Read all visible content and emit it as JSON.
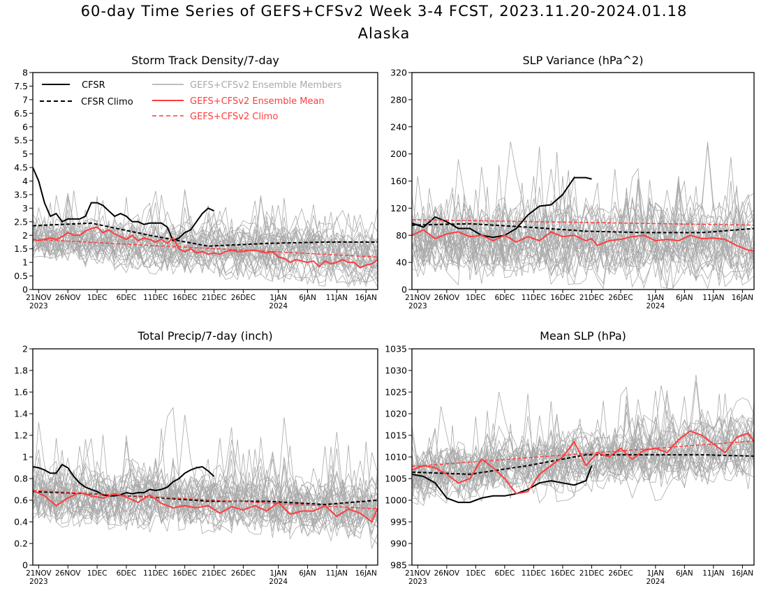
{
  "header": {
    "title": "60-day Time Series of GEFS+CFSv2 Week 3-4 FCST, 2023.11.20-2024.01.18",
    "subtitle": "Alaska"
  },
  "x_axis": {
    "ticks": [
      {
        "day": 1,
        "label": "21NOV",
        "sub": "2023"
      },
      {
        "day": 6,
        "label": "26NOV",
        "sub": ""
      },
      {
        "day": 11,
        "label": "1DEC",
        "sub": ""
      },
      {
        "day": 16,
        "label": "6DEC",
        "sub": ""
      },
      {
        "day": 21,
        "label": "11DEC",
        "sub": ""
      },
      {
        "day": 26,
        "label": "16DEC",
        "sub": ""
      },
      {
        "day": 31,
        "label": "21DEC",
        "sub": ""
      },
      {
        "day": 36,
        "label": "26DEC",
        "sub": ""
      },
      {
        "day": 42,
        "label": "1JAN",
        "sub": "2024"
      },
      {
        "day": 47,
        "label": "6JAN",
        "sub": ""
      },
      {
        "day": 52,
        "label": "11JAN",
        "sub": ""
      },
      {
        "day": 57,
        "label": "16JAN",
        "sub": ""
      }
    ]
  },
  "legend": {
    "cfsr": "CFSR",
    "cfsr_climo": "CFSR Climo",
    "members": "GEFS+CFSv2 Ensemble Members",
    "ens_mean": "GEFS+CFSv2 Ensemble Mean",
    "gefs_climo": "GEFS+CFSv2 Climo"
  },
  "colors": {
    "cfsr": "#000000",
    "members": "#a9a9a9",
    "ens_mean": "#ff3c3c",
    "climo_red": "#ff3c3c"
  },
  "chart_data": [
    {
      "type": "line",
      "title": "Storm Track Density/7-day",
      "ylim": [
        0,
        8
      ],
      "yticks": [
        "0",
        "0.5",
        "1",
        "1.5",
        "2",
        "2.5",
        "3",
        "3.5",
        "4",
        "4.5",
        "5",
        "5.5",
        "6",
        "6.5",
        "7",
        "7.5",
        "8"
      ],
      "member_band": {
        "center": [
          1.85,
          1.2
        ],
        "spread": 0.75
      },
      "series": [
        {
          "role": "cfsr",
          "x": [
            0,
            1,
            2,
            3,
            4,
            5,
            6,
            7,
            8,
            9,
            10,
            11,
            12,
            13,
            14,
            15,
            16,
            17,
            18,
            19,
            20,
            21,
            22,
            23,
            24,
            25,
            26,
            27,
            28,
            29,
            30,
            31
          ],
          "values": [
            4.5,
            4.0,
            3.2,
            2.7,
            2.8,
            2.5,
            2.6,
            2.6,
            2.6,
            2.7,
            3.2,
            3.2,
            3.1,
            2.9,
            2.7,
            2.8,
            2.7,
            2.5,
            2.5,
            2.4,
            2.45,
            2.45,
            2.45,
            2.3,
            1.8,
            1.9,
            2.1,
            2.2,
            2.5,
            2.8,
            3.0,
            2.9
          ]
        },
        {
          "role": "cfsr_climo",
          "x": [
            0,
            10,
            20,
            30,
            40,
            50,
            59
          ],
          "values": [
            2.35,
            2.45,
            2.0,
            1.6,
            1.7,
            1.75,
            1.75
          ]
        },
        {
          "role": "ens_mean",
          "x": [
            0,
            1,
            2,
            3,
            4,
            5,
            6,
            7,
            8,
            9,
            10,
            11,
            12,
            13,
            14,
            15,
            16,
            17,
            18,
            19,
            20,
            21,
            22,
            23,
            24,
            25,
            26,
            27,
            28,
            29,
            30,
            31,
            32,
            33,
            34,
            35,
            36,
            37,
            38,
            39,
            40,
            41,
            42,
            43,
            44,
            45,
            46,
            47,
            48,
            49,
            50,
            51,
            52,
            53,
            54,
            55,
            56,
            57,
            58,
            59
          ],
          "values": [
            1.85,
            1.8,
            1.85,
            1.9,
            1.85,
            1.95,
            2.1,
            2.0,
            2.0,
            2.15,
            2.25,
            2.3,
            2.1,
            2.2,
            2.05,
            1.95,
            1.85,
            2.0,
            1.8,
            1.9,
            1.85,
            1.75,
            1.85,
            1.7,
            1.9,
            1.5,
            1.4,
            1.5,
            1.35,
            1.4,
            1.3,
            1.35,
            1.3,
            1.4,
            1.45,
            1.4,
            1.4,
            1.45,
            1.45,
            1.4,
            1.35,
            1.4,
            1.2,
            1.15,
            1.0,
            1.1,
            1.05,
            1.0,
            1.05,
            0.85,
            1.05,
            0.95,
            1.0,
            1.1,
            1.0,
            1.0,
            0.8,
            0.9,
            0.95,
            1.1
          ]
        },
        {
          "role": "gefs_climo",
          "x": [
            0,
            59
          ],
          "values": [
            1.85,
            1.2
          ]
        }
      ]
    },
    {
      "type": "line",
      "title": "SLP Variance (hPa^2)",
      "ylim": [
        0,
        320
      ],
      "yticks": [
        "0",
        "40",
        "80",
        "120",
        "160",
        "200",
        "240",
        "280",
        "320"
      ],
      "member_band": {
        "center": [
          72,
          72
        ],
        "spread": 45
      },
      "series": [
        {
          "role": "cfsr",
          "x": [
            0,
            2,
            4,
            6,
            8,
            10,
            12,
            14,
            16,
            18,
            20,
            22,
            24,
            26,
            28,
            30,
            31
          ],
          "values": [
            98,
            92,
            107,
            100,
            90,
            90,
            80,
            77,
            80,
            90,
            110,
            123,
            125,
            140,
            165,
            165,
            163
          ]
        },
        {
          "role": "cfsr_climo",
          "x": [
            0,
            10,
            20,
            30,
            40,
            50,
            59
          ],
          "values": [
            95,
            97,
            92,
            86,
            84,
            84,
            90
          ]
        },
        {
          "role": "ens_mean",
          "x": [
            0,
            2,
            4,
            6,
            8,
            10,
            12,
            14,
            16,
            18,
            20,
            22,
            24,
            26,
            28,
            30,
            31,
            32,
            34,
            36,
            38,
            40,
            42,
            44,
            46,
            48,
            50,
            52,
            54,
            56,
            58,
            59
          ],
          "values": [
            80,
            88,
            75,
            82,
            85,
            78,
            80,
            72,
            80,
            70,
            78,
            72,
            85,
            78,
            80,
            72,
            75,
            65,
            72,
            74,
            78,
            80,
            72,
            74,
            72,
            80,
            75,
            76,
            74,
            65,
            58,
            57
          ]
        },
        {
          "role": "gefs_climo",
          "x": [
            0,
            59
          ],
          "values": [
            103,
            95
          ]
        }
      ]
    },
    {
      "type": "line",
      "title": "Total Precip/7-day (inch)",
      "ylim": [
        0,
        2
      ],
      "yticks": [
        "0",
        "0.2",
        "0.4",
        "0.6",
        "0.8",
        "1",
        "1.2",
        "1.4",
        "1.6",
        "1.8",
        "2"
      ],
      "member_band": {
        "center": [
          0.65,
          0.55
        ],
        "spread": 0.25
      },
      "series": [
        {
          "role": "cfsr",
          "x": [
            0,
            1,
            2,
            3,
            4,
            5,
            6,
            7,
            8,
            9,
            10,
            11,
            12,
            13,
            14,
            15,
            16,
            17,
            18,
            19,
            20,
            21,
            22,
            23,
            24,
            25,
            26,
            27,
            28,
            29,
            30,
            31
          ],
          "values": [
            0.91,
            0.9,
            0.88,
            0.85,
            0.85,
            0.93,
            0.9,
            0.82,
            0.76,
            0.72,
            0.7,
            0.68,
            0.65,
            0.64,
            0.64,
            0.65,
            0.67,
            0.66,
            0.67,
            0.67,
            0.7,
            0.69,
            0.7,
            0.72,
            0.77,
            0.8,
            0.85,
            0.88,
            0.9,
            0.91,
            0.87,
            0.82
          ]
        },
        {
          "role": "cfsr_climo",
          "x": [
            0,
            10,
            20,
            30,
            40,
            50,
            59
          ],
          "values": [
            0.68,
            0.66,
            0.63,
            0.59,
            0.59,
            0.56,
            0.6
          ]
        },
        {
          "role": "ens_mean",
          "x": [
            0,
            2,
            4,
            6,
            8,
            10,
            12,
            14,
            16,
            18,
            20,
            22,
            24,
            26,
            28,
            30,
            32,
            34,
            36,
            38,
            40,
            42,
            44,
            46,
            48,
            50,
            52,
            54,
            56,
            58,
            59
          ],
          "values": [
            0.69,
            0.64,
            0.55,
            0.62,
            0.67,
            0.64,
            0.62,
            0.66,
            0.63,
            0.58,
            0.65,
            0.57,
            0.53,
            0.55,
            0.53,
            0.55,
            0.48,
            0.54,
            0.51,
            0.55,
            0.5,
            0.58,
            0.47,
            0.5,
            0.5,
            0.55,
            0.45,
            0.52,
            0.48,
            0.4,
            0.53
          ]
        },
        {
          "role": "gefs_climo",
          "x": [
            0,
            59
          ],
          "values": [
            0.69,
            0.52
          ]
        }
      ]
    },
    {
      "type": "line",
      "title": "Mean SLP (hPa)",
      "ylim": [
        985,
        1035
      ],
      "yticks": [
        "985",
        "990",
        "995",
        "1000",
        "1005",
        "1010",
        "1015",
        "1020",
        "1025",
        "1030",
        "1035"
      ],
      "member_band": {
        "center": [
          1006,
          1013
        ],
        "spread": 6
      },
      "series": [
        {
          "role": "cfsr",
          "x": [
            0,
            2,
            4,
            6,
            8,
            10,
            12,
            14,
            16,
            18,
            20,
            22,
            24,
            26,
            28,
            30,
            31
          ],
          "values": [
            1006,
            1005.5,
            1004,
            1000.5,
            999.5,
            999.5,
            1000.5,
            1001,
            1001,
            1001.5,
            1002.5,
            1004,
            1004.5,
            1004,
            1003.5,
            1004.5,
            1008
          ]
        },
        {
          "role": "cfsr_climo",
          "x": [
            0,
            10,
            20,
            30,
            40,
            50,
            59
          ],
          "values": [
            1006.5,
            1006,
            1008,
            1010.5,
            1010.5,
            1010.5,
            1010.2
          ]
        },
        {
          "role": "ens_mean",
          "x": [
            0,
            2,
            4,
            6,
            8,
            10,
            12,
            14,
            16,
            18,
            20,
            22,
            24,
            26,
            28,
            30,
            32,
            34,
            36,
            38,
            40,
            42,
            44,
            46,
            48,
            50,
            52,
            54,
            56,
            58,
            59
          ],
          "values": [
            1007,
            1008,
            1007.5,
            1006,
            1004,
            1005,
            1009.5,
            1007.5,
            1005,
            1001.5,
            1002,
            1006,
            1008,
            1010,
            1013.5,
            1008,
            1011,
            1010,
            1012,
            1009.5,
            1011.5,
            1012,
            1011,
            1014,
            1016,
            1015,
            1013,
            1011,
            1014.5,
            1015.5,
            1013.5
          ]
        },
        {
          "role": "gefs_climo",
          "x": [
            0,
            59
          ],
          "values": [
            1007.8,
            1013.7
          ]
        }
      ]
    }
  ]
}
